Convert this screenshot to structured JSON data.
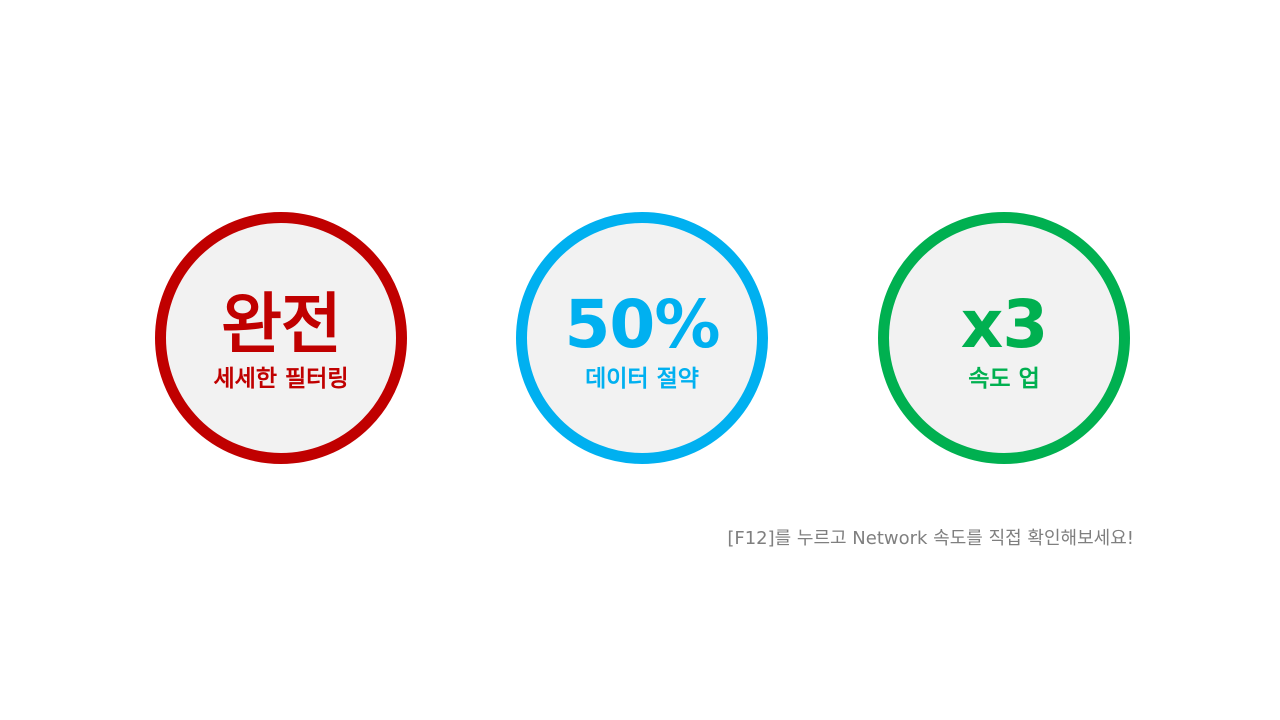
{
  "badges": [
    {
      "headline": "완전",
      "subline": "세세한 필터링",
      "color": "#c00000"
    },
    {
      "headline": "50%",
      "subline": "데이터 절약",
      "color": "#00b0f0"
    },
    {
      "headline": "x3",
      "subline": "속도 업",
      "color": "#00b050"
    }
  ],
  "note": "[F12]를 누르고 Network 속도를 직접 확인해보세요!"
}
